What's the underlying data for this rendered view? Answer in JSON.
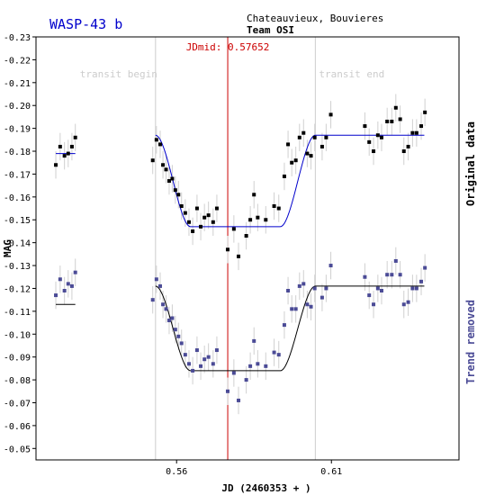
{
  "chart_data": {
    "type": "scatter",
    "title": "WASP-43 b",
    "observers": "Chateauvieux, Bouvieres",
    "team": "Team OSI",
    "xlabel": "JD (2460353 + )",
    "ylabel": "MAG",
    "right_label_top": "Original data",
    "right_label_bottom": "Trend removed",
    "xlim": [
      0.5146,
      0.6512
    ],
    "ylim": [
      -0.23,
      -0.045
    ],
    "x_ticks": [
      0.56,
      0.61
    ],
    "x_tick_labels": [
      "0.56",
      "0.61"
    ],
    "y_ticks": [
      -0.23,
      -0.22,
      -0.21,
      -0.2,
      -0.19,
      -0.18,
      -0.17,
      -0.16,
      -0.15,
      -0.14,
      -0.13,
      -0.12,
      -0.11,
      -0.1,
      -0.09,
      -0.08,
      -0.07,
      -0.06,
      -0.05
    ],
    "y_tick_labels": [
      "-0.23",
      "-0.22",
      "-0.21",
      "-0.20",
      "-0.19",
      "-0.18",
      "-0.17",
      "-0.16",
      "-0.15",
      "-0.14",
      "-0.13",
      "-0.12",
      "-0.11",
      "-0.10",
      "-0.09",
      "-0.08",
      "-0.07",
      "-0.06",
      "-0.05"
    ],
    "transit_begin": 0.5532,
    "transit_begin_label": "transit begin",
    "transit_end": 0.6048,
    "transit_end_label": "transit end",
    "jdmid": 0.57652,
    "jdmid_label": "JDmid: 0.57652",
    "model_ingress": [
      0.5532,
      0.5645
    ],
    "model_egress": [
      0.5935,
      0.6048
    ],
    "model_tail_end": 0.64,
    "error_bar": 0.006,
    "series": [
      {
        "name": "Original data",
        "color": "#000000",
        "model_color": "#0000cc",
        "baseline": -0.187,
        "depth": 0.04,
        "points": [
          [
            0.521,
            -0.174
          ],
          [
            0.5224,
            -0.182
          ],
          [
            0.5238,
            -0.178
          ],
          [
            0.525,
            -0.179
          ],
          [
            0.5262,
            -0.182
          ],
          [
            0.5273,
            -0.186
          ],
          [
            0.5523,
            -0.176
          ],
          [
            0.5535,
            -0.185
          ],
          [
            0.5547,
            -0.183
          ],
          [
            0.5556,
            -0.174
          ],
          [
            0.5566,
            -0.172
          ],
          [
            0.5576,
            -0.167
          ],
          [
            0.5586,
            -0.168
          ],
          [
            0.5596,
            -0.163
          ],
          [
            0.5606,
            -0.161
          ],
          [
            0.5616,
            -0.156
          ],
          [
            0.5628,
            -0.153
          ],
          [
            0.564,
            -0.149
          ],
          [
            0.5652,
            -0.145
          ],
          [
            0.5666,
            -0.155
          ],
          [
            0.5678,
            -0.147
          ],
          [
            0.569,
            -0.151
          ],
          [
            0.5703,
            -0.152
          ],
          [
            0.5718,
            -0.149
          ],
          [
            0.573,
            -0.155
          ],
          [
            0.5765,
            -0.137
          ],
          [
            0.5785,
            -0.146
          ],
          [
            0.58,
            -0.134
          ],
          [
            0.5825,
            -0.143
          ],
          [
            0.5838,
            -0.15
          ],
          [
            0.585,
            -0.161
          ],
          [
            0.5862,
            -0.151
          ],
          [
            0.5888,
            -0.15
          ],
          [
            0.5915,
            -0.156
          ],
          [
            0.593,
            -0.155
          ],
          [
            0.5948,
            -0.169
          ],
          [
            0.596,
            -0.183
          ],
          [
            0.5972,
            -0.175
          ],
          [
            0.5985,
            -0.176
          ],
          [
            0.5997,
            -0.186
          ],
          [
            0.601,
            -0.188
          ],
          [
            0.6022,
            -0.179
          ],
          [
            0.6034,
            -0.178
          ],
          [
            0.6046,
            -0.186
          ],
          [
            0.607,
            -0.182
          ],
          [
            0.6083,
            -0.186
          ],
          [
            0.6098,
            -0.196
          ],
          [
            0.6208,
            -0.191
          ],
          [
            0.6222,
            -0.184
          ],
          [
            0.6236,
            -0.18
          ],
          [
            0.625,
            -0.187
          ],
          [
            0.6262,
            -0.186
          ],
          [
            0.628,
            -0.193
          ],
          [
            0.6295,
            -0.193
          ],
          [
            0.6308,
            -0.199
          ],
          [
            0.6322,
            -0.194
          ],
          [
            0.6334,
            -0.18
          ],
          [
            0.6348,
            -0.182
          ],
          [
            0.6362,
            -0.188
          ],
          [
            0.6375,
            -0.188
          ],
          [
            0.639,
            -0.191
          ],
          [
            0.6402,
            -0.197
          ]
        ]
      },
      {
        "name": "Trend removed",
        "color": "#4b4b96",
        "model_color": "#000000",
        "baseline": -0.121,
        "depth": 0.037,
        "points": [
          [
            0.521,
            -0.117
          ],
          [
            0.5224,
            -0.124
          ],
          [
            0.5238,
            -0.119
          ],
          [
            0.525,
            -0.122
          ],
          [
            0.5262,
            -0.121
          ],
          [
            0.5273,
            -0.127
          ],
          [
            0.5523,
            -0.115
          ],
          [
            0.5535,
            -0.124
          ],
          [
            0.5547,
            -0.121
          ],
          [
            0.5556,
            -0.113
          ],
          [
            0.5566,
            -0.111
          ],
          [
            0.5576,
            -0.106
          ],
          [
            0.5586,
            -0.107
          ],
          [
            0.5596,
            -0.102
          ],
          [
            0.5606,
            -0.099
          ],
          [
            0.5616,
            -0.096
          ],
          [
            0.5628,
            -0.091
          ],
          [
            0.564,
            -0.087
          ],
          [
            0.5652,
            -0.084
          ],
          [
            0.5666,
            -0.093
          ],
          [
            0.5678,
            -0.086
          ],
          [
            0.569,
            -0.089
          ],
          [
            0.5703,
            -0.09
          ],
          [
            0.5718,
            -0.087
          ],
          [
            0.573,
            -0.093
          ],
          [
            0.5765,
            -0.075
          ],
          [
            0.5785,
            -0.083
          ],
          [
            0.58,
            -0.071
          ],
          [
            0.5825,
            -0.08
          ],
          [
            0.5838,
            -0.086
          ],
          [
            0.585,
            -0.097
          ],
          [
            0.5862,
            -0.087
          ],
          [
            0.5888,
            -0.086
          ],
          [
            0.5915,
            -0.092
          ],
          [
            0.593,
            -0.091
          ],
          [
            0.5948,
            -0.104
          ],
          [
            0.596,
            -0.119
          ],
          [
            0.5972,
            -0.111
          ],
          [
            0.5985,
            -0.111
          ],
          [
            0.5997,
            -0.121
          ],
          [
            0.601,
            -0.122
          ],
          [
            0.6022,
            -0.113
          ],
          [
            0.6034,
            -0.112
          ],
          [
            0.6046,
            -0.12
          ],
          [
            0.607,
            -0.116
          ],
          [
            0.6083,
            -0.12
          ],
          [
            0.6098,
            -0.13
          ],
          [
            0.6208,
            -0.125
          ],
          [
            0.6222,
            -0.117
          ],
          [
            0.6236,
            -0.113
          ],
          [
            0.625,
            -0.12
          ],
          [
            0.6262,
            -0.119
          ],
          [
            0.628,
            -0.126
          ],
          [
            0.6295,
            -0.126
          ],
          [
            0.6308,
            -0.132
          ],
          [
            0.6322,
            -0.126
          ],
          [
            0.6334,
            -0.113
          ],
          [
            0.6348,
            -0.114
          ],
          [
            0.6362,
            -0.12
          ],
          [
            0.6375,
            -0.12
          ],
          [
            0.639,
            -0.123
          ],
          [
            0.6402,
            -0.129
          ]
        ]
      }
    ]
  }
}
